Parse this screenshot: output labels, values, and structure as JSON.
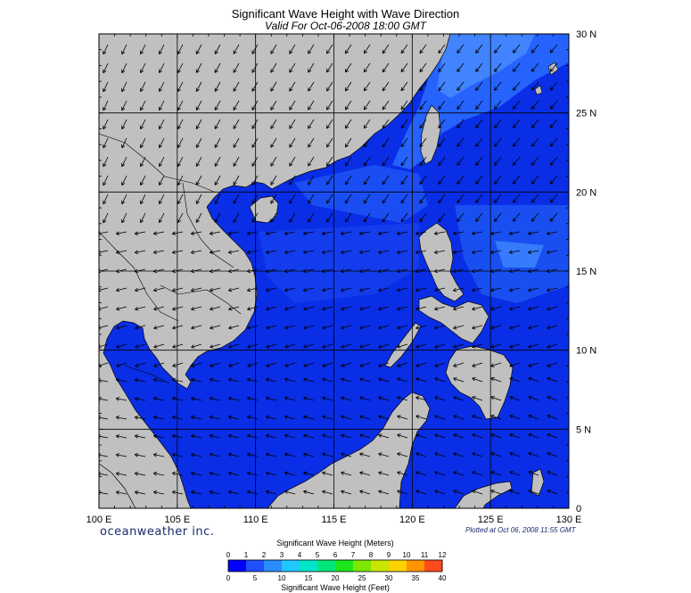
{
  "title": "Significant Wave Height with Wave Direction",
  "subtitle": "Valid For Oct-06-2008 18:00 GMT",
  "brand": "oceanweather inc.",
  "plotted_note": "Plotted at Oct 06, 2008 11:55 GMT",
  "map": {
    "lon_labels": [
      "100 E",
      "105 E",
      "110 E",
      "115 E",
      "120 E",
      "125 E",
      "130 E"
    ],
    "lat_labels": [
      "30 N",
      "25 N",
      "20 N",
      "15 N",
      "10 N",
      "5 N",
      "0"
    ],
    "lon_range": [
      100,
      130
    ],
    "lat_range": [
      0,
      30
    ],
    "land_color": "#c0c0c0",
    "sea_base_color": "#0a2ee6",
    "grid": true
  },
  "colorbar": {
    "title_top": "Significant Wave Height (Meters)",
    "title_bottom": "Significant Wave Height (Feet)",
    "meters_ticks": [
      "0",
      "1",
      "2",
      "3",
      "4",
      "5",
      "6",
      "7",
      "8",
      "9",
      "10",
      "11",
      "12"
    ],
    "feet_ticks": [
      "0",
      "5",
      "10",
      "15",
      "20",
      "25",
      "30",
      "35",
      "40"
    ],
    "colors": [
      "#0000ff",
      "#1f4fff",
      "#2a8cff",
      "#21c8ff",
      "#00e6c8",
      "#00e67a",
      "#1ee61e",
      "#7ee600",
      "#c8e600",
      "#ffd200",
      "#ff9600",
      "#ff4a1e"
    ]
  },
  "chart_data": {
    "type": "heatmap",
    "title": "Significant Wave Height with Wave Direction",
    "subtitle": "Valid For Oct-06-2008 18:00 GMT",
    "xlabel": "",
    "ylabel": "",
    "xlim": [
      100,
      130
    ],
    "ylim": [
      0,
      30
    ],
    "x_ticks": [
      "100 E",
      "105 E",
      "110 E",
      "115 E",
      "120 E",
      "125 E",
      "130 E"
    ],
    "y_ticks": [
      "0",
      "5 N",
      "10 N",
      "15 N",
      "20 N",
      "25 N",
      "30 N"
    ],
    "value_range_m": [
      0,
      12
    ],
    "grid": true
  }
}
